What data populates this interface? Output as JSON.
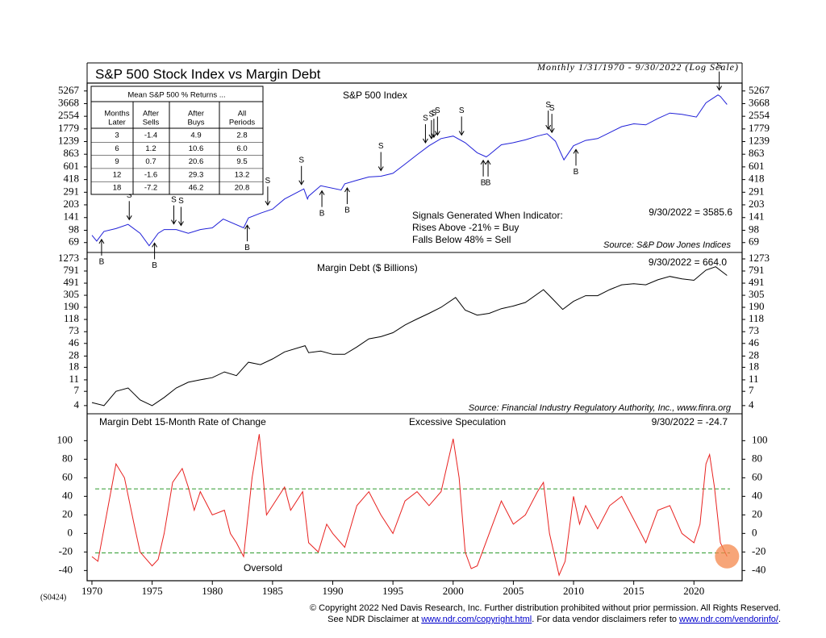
{
  "chart_data": [
    {
      "type": "line",
      "scale": "log",
      "title": "S&P 500 Stock Index vs Margin Debt",
      "subtitle": "Monthly 1/31/1970 - 9/30/2022 (Log Scale)",
      "xlim": [
        1969.6,
        2024
      ],
      "ylim": [
        52,
        6600
      ],
      "yticks": [
        69,
        98,
        141,
        203,
        291,
        418,
        601,
        863,
        1239,
        1779,
        2554,
        3668,
        5267
      ],
      "x": [
        1970,
        1970.4,
        1971,
        1972,
        1973,
        1974,
        1974.75,
        1975.5,
        1976,
        1977,
        1978,
        1979,
        1980,
        1980.9,
        1982.6,
        1983,
        1984,
        1985,
        1986,
        1987.6,
        1987.9,
        1988,
        1989,
        1990.7,
        1991,
        1992,
        1993,
        1994,
        1995,
        1996,
        1997,
        1998,
        1999,
        2000,
        2001,
        2002,
        2002.75,
        2003,
        2004,
        2005,
        2006,
        2007,
        2007.8,
        2008.5,
        2009.2,
        2010,
        2011,
        2012,
        2013,
        2014,
        2015,
        2016,
        2017,
        2018,
        2019,
        2020.2,
        2021,
        2022,
        2022.2,
        2022.75
      ],
      "series": [
        {
          "name": "S&P 500 Index",
          "color": "#2020d8",
          "values": [
            85,
            72,
            95,
            103,
            116,
            90,
            63,
            90,
            100,
            100,
            90,
            100,
            105,
            135,
            105,
            140,
            160,
            180,
            240,
            320,
            240,
            260,
            350,
            310,
            370,
            410,
            450,
            460,
            500,
            650,
            850,
            1100,
            1350,
            1450,
            1200,
            900,
            800,
            850,
            1130,
            1200,
            1300,
            1450,
            1550,
            1250,
            735,
            1100,
            1280,
            1350,
            1600,
            1900,
            2060,
            2000,
            2400,
            2800,
            2700,
            2500,
            3750,
            4700,
            4500,
            3585.6
          ]
        }
      ],
      "signals": [
        {
          "x": 1970.8,
          "label": "B"
        },
        {
          "x": 1973.1,
          "label": "S"
        },
        {
          "x": 1975.2,
          "label": "B"
        },
        {
          "x": 1976.8,
          "label": "S"
        },
        {
          "x": 1977.4,
          "label": "S"
        },
        {
          "x": 1982.9,
          "label": "B"
        },
        {
          "x": 1984.6,
          "label": "S"
        },
        {
          "x": 1987.4,
          "label": "S"
        },
        {
          "x": 1989.1,
          "label": "B"
        },
        {
          "x": 1991.2,
          "label": "B"
        },
        {
          "x": 1994.0,
          "label": "S"
        },
        {
          "x": 1997.7,
          "label": "S"
        },
        {
          "x": 1998.2,
          "label": "S"
        },
        {
          "x": 1998.4,
          "label": "S"
        },
        {
          "x": 1998.7,
          "label": "S"
        },
        {
          "x": 2000.7,
          "label": "S"
        },
        {
          "x": 2002.5,
          "label": "B"
        },
        {
          "x": 2002.9,
          "label": "B"
        },
        {
          "x": 2007.9,
          "label": "S"
        },
        {
          "x": 2008.2,
          "label": "S"
        },
        {
          "x": 2010.2,
          "label": "B"
        },
        {
          "x": 2022.1,
          "label": "S"
        }
      ],
      "table": {
        "title": "Mean S&P 500 % Returns ...",
        "columns": [
          [
            "Months",
            "Later"
          ],
          [
            "After",
            "Sells"
          ],
          [
            "After",
            "Buys"
          ],
          [
            "All",
            "Periods"
          ]
        ],
        "rows": [
          [
            "3",
            "-1.4",
            "4.9",
            "2.8"
          ],
          [
            "6",
            "1.2",
            "10.6",
            "6.0"
          ],
          [
            "9",
            "0.7",
            "20.6",
            "9.5"
          ],
          [
            "12",
            "-1.6",
            "29.3",
            "13.2"
          ],
          [
            "18",
            "-7.2",
            "46.2",
            "20.8"
          ]
        ]
      },
      "notes": [
        "Signals Generated When Indicator:",
        "Rises Above -21% = Buy",
        "Falls Below 48% = Sell"
      ],
      "last_value_label": "9/30/2022 = 3585.6",
      "source": "Source: S&P Dow Jones Indices"
    },
    {
      "type": "line",
      "scale": "log",
      "xlim": [
        1969.6,
        2024
      ],
      "ylim": [
        2.9,
        1640
      ],
      "yticks": [
        4,
        7,
        11,
        18,
        28,
        46,
        73,
        118,
        190,
        305,
        491,
        791,
        1273
      ],
      "x": [
        1970,
        1971,
        1972,
        1973,
        1974,
        1975,
        1976,
        1977,
        1978,
        1979,
        1980,
        1981,
        1982,
        1983,
        1984,
        1985,
        1986,
        1987.7,
        1988,
        1989,
        1990,
        1991,
        1992,
        1993,
        1994,
        1995,
        1996,
        1997,
        1998,
        1999,
        2000.2,
        2001,
        2002,
        2003,
        2004,
        2005,
        2006,
        2007.5,
        2008,
        2009.1,
        2010,
        2011,
        2012,
        2013,
        2014,
        2015,
        2016,
        2017,
        2018,
        2019,
        2020,
        2021,
        2021.8,
        2022.75
      ],
      "series": [
        {
          "name": "Margin Debt ($ Billions)",
          "color": "#000000",
          "values": [
            4.5,
            4,
            7,
            8,
            5,
            4,
            5.5,
            8,
            10,
            11,
            12,
            15,
            13,
            22,
            20,
            25,
            33,
            42,
            32,
            34,
            30,
            30,
            40,
            55,
            60,
            70,
            95,
            120,
            150,
            190,
            280,
            170,
            140,
            150,
            180,
            200,
            230,
            380,
            300,
            175,
            240,
            300,
            300,
            380,
            460,
            480,
            460,
            560,
            640,
            580,
            550,
            820,
            936,
            664.0
          ]
        }
      ],
      "last_value_label": "9/30/2022 = 664.0",
      "source": "Source: Financial Industry Regulatory Authority, Inc., www.finra.org"
    },
    {
      "type": "line",
      "scale": "linear",
      "xlim": [
        1969.6,
        2024
      ],
      "xticks": [
        1970,
        1975,
        1980,
        1985,
        1990,
        1995,
        2000,
        2005,
        2010,
        2015,
        2020
      ],
      "ylim": [
        -51,
        129
      ],
      "yticks": [
        -40,
        -20,
        0,
        20,
        40,
        60,
        80,
        100
      ],
      "reference_lines": [
        48,
        -21
      ],
      "reference_color": "#2e9a2e",
      "x": [
        1970,
        1970.5,
        1971,
        1972,
        1972.7,
        1973.5,
        1974,
        1975,
        1975.5,
        1976,
        1976.7,
        1977.5,
        1978,
        1978.5,
        1979,
        1980,
        1981,
        1981.5,
        1982,
        1982.6,
        1983.3,
        1983.9,
        1984.5,
        1985,
        1986,
        1986.5,
        1987.5,
        1988,
        1988.8,
        1989.5,
        1990,
        1991,
        1992,
        1993,
        1994,
        1995,
        1996,
        1997,
        1998,
        1999,
        2000,
        2000.5,
        2001,
        2001.5,
        2002,
        2003,
        2004,
        2005,
        2006,
        2007,
        2007.5,
        2008,
        2008.8,
        2009.3,
        2010,
        2010.5,
        2011,
        2012,
        2013,
        2014,
        2015,
        2016,
        2017,
        2018,
        2019,
        2020,
        2020.5,
        2021,
        2021.3,
        2021.7,
        2022.2,
        2022.75
      ],
      "series": [
        {
          "name": "Margin Debt 15-Month Rate of Change",
          "color": "#e8211f",
          "values": [
            -25,
            -30,
            5,
            75,
            60,
            10,
            -20,
            -35,
            -28,
            0,
            55,
            70,
            50,
            25,
            45,
            20,
            25,
            0,
            -10,
            -25,
            60,
            107,
            20,
            30,
            50,
            25,
            45,
            -10,
            -20,
            10,
            0,
            -15,
            30,
            45,
            20,
            0,
            35,
            45,
            30,
            45,
            102,
            60,
            -20,
            -38,
            -35,
            0,
            35,
            10,
            20,
            45,
            55,
            0,
            -45,
            -30,
            40,
            10,
            30,
            5,
            30,
            40,
            15,
            -10,
            25,
            30,
            0,
            -10,
            10,
            75,
            85,
            50,
            -10,
            -24.7
          ]
        }
      ],
      "annotations": [
        "Excessive Speculation",
        "Oversold"
      ],
      "last_value_label": "9/30/2022 = -24.7"
    }
  ],
  "footer": {
    "code": "(S0424)",
    "copyright": "© Copyright 2022 Ned Davis Research, Inc.  Further distribution prohibited without prior permission.  All Rights Reserved.",
    "disclaimer": [
      "See NDR Disclaimer at ",
      "www.ndr.com/copyright.html",
      ". For data vendor disclaimers refer to ",
      "www.ndr.com/vendorinfo/",
      "."
    ]
  }
}
